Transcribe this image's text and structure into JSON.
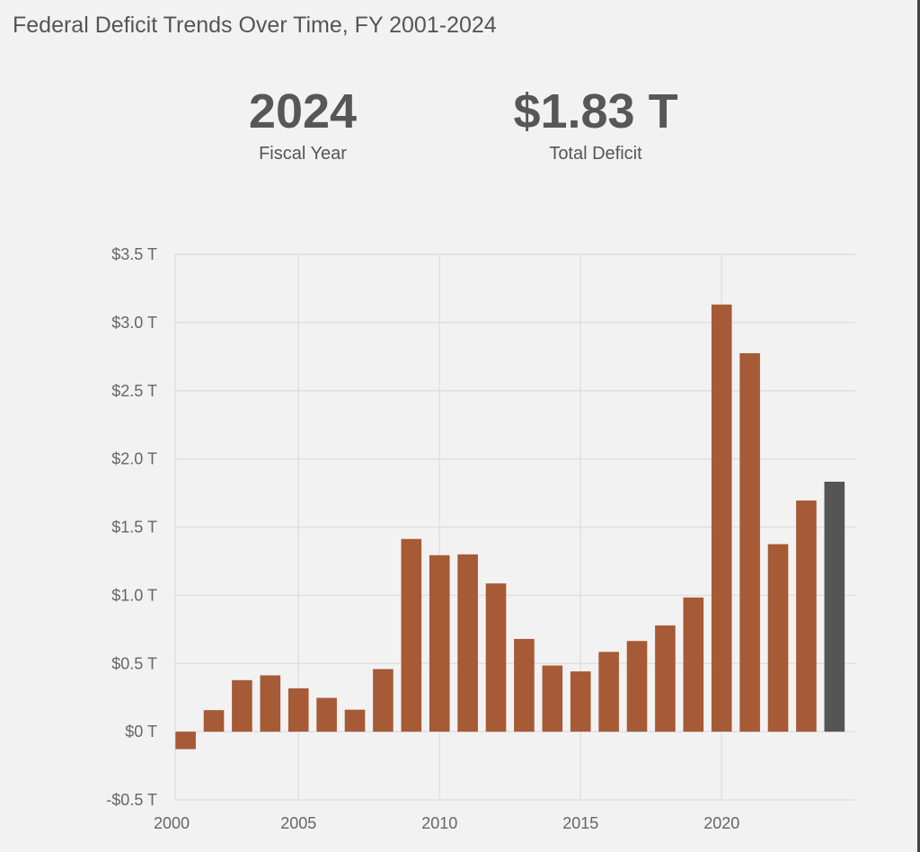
{
  "title": "Federal Deficit Trends Over Time, FY 2001-2024",
  "stats": [
    {
      "value": "2024",
      "label": "Fiscal Year"
    },
    {
      "value": "$1.83 T",
      "label": "Total Deficit"
    }
  ],
  "colors": {
    "bar": "#a65a35",
    "highlight": "#555555",
    "grid": "#e0e0e0"
  },
  "chart_data": {
    "type": "bar",
    "title": "Federal Deficit Trends Over Time, FY 2001-2024",
    "x": [
      2001,
      2002,
      2003,
      2004,
      2005,
      2006,
      2007,
      2008,
      2009,
      2010,
      2011,
      2012,
      2013,
      2014,
      2015,
      2016,
      2017,
      2018,
      2019,
      2020,
      2021,
      2022,
      2023,
      2024
    ],
    "values": [
      -0.128,
      0.158,
      0.378,
      0.413,
      0.318,
      0.248,
      0.161,
      0.459,
      1.413,
      1.294,
      1.3,
      1.087,
      0.68,
      0.485,
      0.442,
      0.585,
      0.665,
      0.779,
      0.984,
      3.132,
      2.775,
      1.375,
      1.695,
      1.833
    ],
    "highlighted": 2024,
    "ylim": [
      -0.5,
      3.5
    ],
    "yticks": [
      -0.5,
      0,
      0.5,
      1.0,
      1.5,
      2.0,
      2.5,
      3.0,
      3.5
    ],
    "ytick_labels": [
      "-$0.5 T",
      "$0 T",
      "$0.5 T",
      "$1.0 T",
      "$1.5 T",
      "$2.0 T",
      "$2.5 T",
      "$3.0 T",
      "$3.5 T"
    ],
    "xticks": [
      2000,
      2005,
      2010,
      2015,
      2020
    ],
    "xtick_labels": [
      "2000",
      "2005",
      "2010",
      "2015",
      "2020"
    ],
    "grid": true,
    "xlabel": "",
    "ylabel": ""
  }
}
